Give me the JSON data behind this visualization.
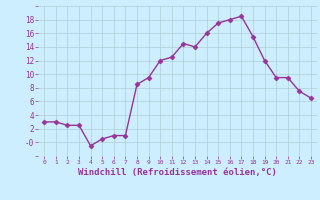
{
  "x": [
    0,
    1,
    2,
    3,
    4,
    5,
    6,
    7,
    8,
    9,
    10,
    11,
    12,
    13,
    14,
    15,
    16,
    17,
    18,
    19,
    20,
    21,
    22,
    23
  ],
  "y": [
    3,
    3,
    2.5,
    2.5,
    -0.5,
    0.5,
    1,
    1,
    8.5,
    9.5,
    12,
    12.5,
    14.5,
    14,
    16,
    17.5,
    18,
    18.5,
    15.5,
    12,
    9.5,
    9.5,
    7.5,
    6.5
  ],
  "line_color": "#993399",
  "marker": "D",
  "markersize": 2.5,
  "linewidth": 1.0,
  "xlabel": "Windchill (Refroidissement éolien,°C)",
  "xlabel_fontsize": 6.5,
  "background_color": "#cceeff",
  "grid_color": "#aacccc",
  "tick_color": "#993399",
  "label_color": "#993399",
  "xlim": [
    -0.5,
    23.5
  ],
  "ylim": [
    -2,
    20
  ],
  "yticks": [
    0,
    2,
    4,
    6,
    8,
    10,
    12,
    14,
    16,
    18
  ],
  "ytick_labels": [
    "-0",
    "2",
    "4",
    "6",
    "8",
    "10",
    "12",
    "14",
    "16",
    "18"
  ],
  "xticks": [
    0,
    1,
    2,
    3,
    4,
    5,
    6,
    7,
    8,
    9,
    10,
    11,
    12,
    13,
    14,
    15,
    16,
    17,
    18,
    19,
    20,
    21,
    22,
    23
  ]
}
